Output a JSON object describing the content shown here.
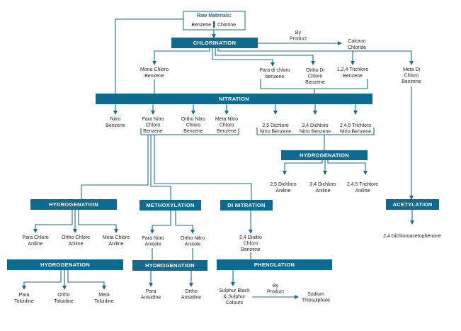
{
  "colors": {
    "process_bar": "#0e6a8f",
    "line": "#1a6a8f",
    "text": "#222222"
  },
  "raw_materials": {
    "title": "Raw Materials:",
    "items": [
      "Benzene",
      "Chlorine"
    ]
  },
  "processes": {
    "chlorination": "CHLORINATION",
    "nitration": "NITRATION",
    "hydrogenation_dichloro": "HYDROGENATION",
    "acetylation": "ACETYLATION",
    "hydrogenation_chloro_aniline": "HYDROGENATION",
    "methoxylation": "METHOXYLATION",
    "di_nitration": "DI NITRATION",
    "hydrogenation_toluidine": "HYDROGENATION",
    "hydrogenation_anisidine": "HYDROGENATION",
    "phenolation": "PHENOLATION"
  },
  "by_product_label": [
    "By",
    "Product"
  ],
  "products": {
    "calcium_chloride": [
      "Calcium",
      "Chloride"
    ],
    "mono_chloro_benzene": [
      "Mono Chloro",
      "Benzene"
    ],
    "para_di_chloro_benzene": [
      "Para di chloro",
      "benzene"
    ],
    "ortho_di_chloro_benzene": [
      "Ortho Di",
      "Chloro",
      "Benzene"
    ],
    "trichloro_benzene_124": [
      "1,2,4 Trichloro",
      "Benzene"
    ],
    "meta_di_chloro_benzene": [
      "Meta Di",
      "Chloro",
      "Benzene"
    ],
    "nitro_benzene": [
      "Nitro",
      "Benzene"
    ],
    "para_nitro_chloro_benzene": [
      "Para Nitro",
      "Chloro",
      "Benzene"
    ],
    "ortho_nitro_chloro_benzene": [
      "Ortho Nitro",
      "Chloro",
      "Benzene"
    ],
    "meta_nitro_chloro_benzene": [
      "Meta Nitro",
      "Chloro",
      "Benzene"
    ],
    "dichloro_nitro_benzene_25": [
      "2,5 Dichloro",
      "Nitro Benzene"
    ],
    "dichloro_nitro_benzene_34": [
      "3,4 Dichloro",
      "Nitro Benzene"
    ],
    "trichloro_nitro_benzene_245": [
      "2,4,5 Trichloro",
      "Nitro Benzene"
    ],
    "dichloro_aniline_25": [
      "2,5 Dichloro",
      "Aniline"
    ],
    "dichloro_aniline_34": [
      "3,4 Dichloro",
      "Aniline"
    ],
    "trichloro_aniline_245": [
      "2,4,5 Trichloro",
      "Aniline"
    ],
    "dichloroacetophenone_24": [
      "2,4 Dichloroacetophenone"
    ],
    "para_chloro_aniline": [
      "Para Chloro",
      "Aniline"
    ],
    "ortho_chloro_aniline": [
      "Ortho Chloro",
      "Aniline"
    ],
    "meta_chloro_aniline": [
      "Meta Chloro",
      "Aniline"
    ],
    "para_nitro_anisole": [
      "Para Nitro",
      "Anisole"
    ],
    "ortho_nitro_anisole": [
      "Ortho Nitro",
      "Anisole"
    ],
    "dinitro_chloro_benzene_24": [
      "2,4 Dinitro",
      "Chloro",
      "Benzene"
    ],
    "para_toluidine": [
      "Para",
      "Toluidine"
    ],
    "ortho_toluidine": [
      "Ortho",
      "Toluidine"
    ],
    "meta_toluidine": [
      "Meta",
      "Toluidine"
    ],
    "para_anisidine": [
      "Para",
      "Anisidine"
    ],
    "ortho_anisidine": [
      "Ortho",
      "Anisidine"
    ],
    "sulphur_black_colours": [
      "Sulphur Black",
      "& Sulphur",
      "Colours"
    ],
    "sodium_thiosulphate": [
      "Sodium",
      "Thiosulphate"
    ]
  }
}
